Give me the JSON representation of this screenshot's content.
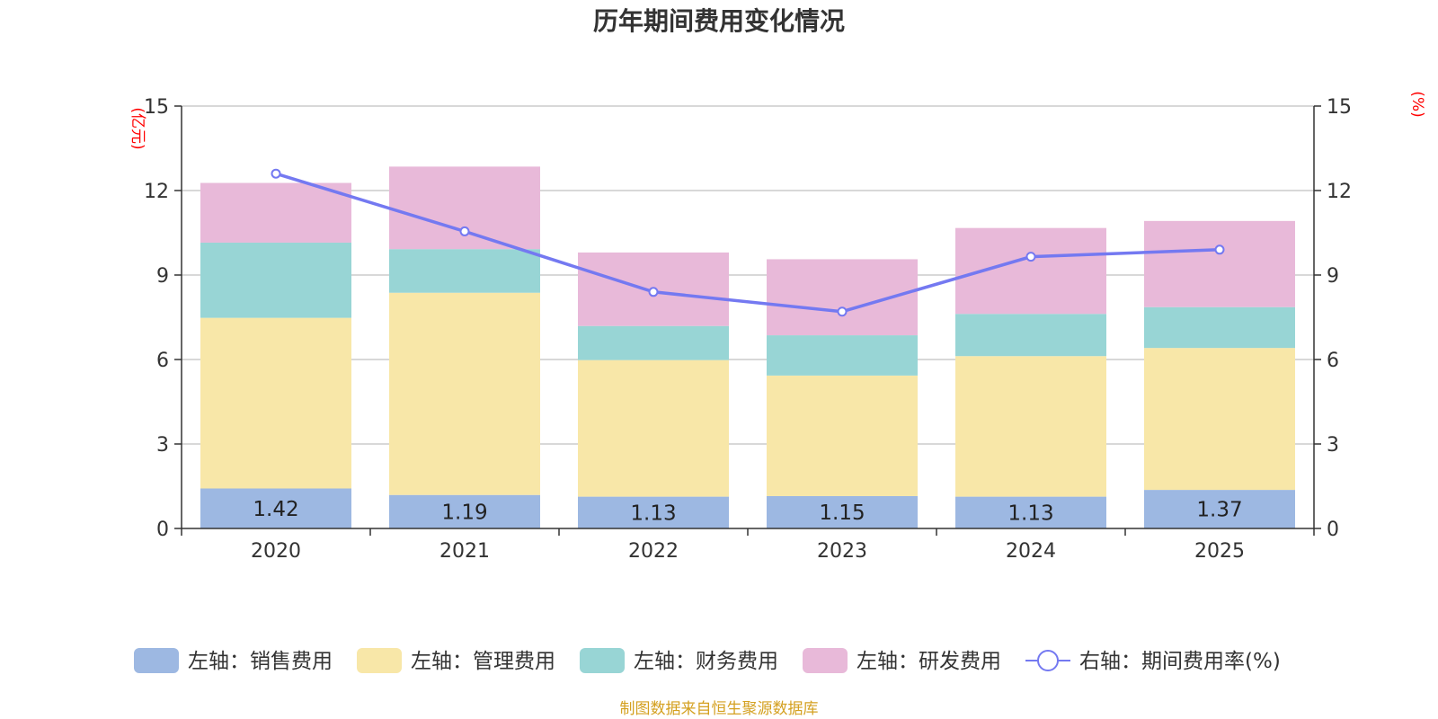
{
  "chart_data": {
    "type": "bar",
    "stacked": true,
    "title": "历年期间费用变化情况",
    "categories": [
      "2020",
      "2021",
      "2022",
      "2023",
      "2024",
      "2025"
    ],
    "left_axis": {
      "unit": "(亿元)",
      "min": 0,
      "max": 15,
      "ticks": [
        0,
        3,
        6,
        9,
        12,
        15
      ]
    },
    "right_axis": {
      "unit": "(%)",
      "min": 0,
      "max": 15,
      "ticks": [
        0,
        3,
        6,
        9,
        12,
        15
      ]
    },
    "grid": true,
    "series": [
      {
        "name": "左轴：销售费用",
        "type": "bar",
        "axis": "left",
        "color": "#9db8e2",
        "values": [
          1.42,
          1.19,
          1.13,
          1.15,
          1.13,
          1.37
        ],
        "labels": [
          "1.42",
          "1.19",
          "1.13",
          "1.15",
          "1.13",
          "1.37"
        ]
      },
      {
        "name": "左轴：管理费用",
        "type": "bar",
        "axis": "left",
        "color": "#f8e7a8",
        "values": [
          6.06,
          7.18,
          4.85,
          4.28,
          4.99,
          5.04
        ]
      },
      {
        "name": "左轴：财务费用",
        "type": "bar",
        "axis": "left",
        "color": "#98d5d5",
        "values": [
          2.67,
          1.55,
          1.21,
          1.43,
          1.5,
          1.45
        ]
      },
      {
        "name": "左轴：研发费用",
        "type": "bar",
        "axis": "left",
        "color": "#e8b9d9",
        "values": [
          2.12,
          2.93,
          2.61,
          2.7,
          3.05,
          3.06
        ]
      },
      {
        "name": "右轴：期间费用率(%)",
        "type": "line",
        "axis": "right",
        "color": "#7479f1",
        "values": [
          12.6,
          10.55,
          8.4,
          7.7,
          9.65,
          9.9
        ]
      }
    ],
    "legend_position": "bottom"
  },
  "source_note": "制图数据来自恒生聚源数据库"
}
